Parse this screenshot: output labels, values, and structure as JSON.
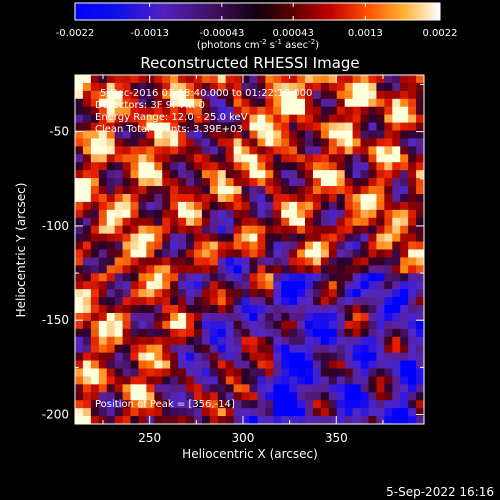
{
  "chart_data": {
    "type": "heatmap",
    "title": "Reconstructed RHESSI Image",
    "xlabel": "Heliocentric X (arcsec)",
    "ylabel": "Heliocentric Y (arcsec)",
    "xlim": [
      210,
      397
    ],
    "ylim": [
      -205,
      -20
    ],
    "x_ticks": [
      250,
      300,
      350
    ],
    "y_ticks": [
      -50,
      -100,
      -150,
      -200
    ],
    "colorbar": {
      "range": [
        -0.0022,
        0.0022
      ],
      "tick_labels": [
        "-0.0022",
        "-0.0013",
        "-0.00043",
        "0.00043",
        "0.0013",
        "0.0022"
      ],
      "label_prefix": "(photons cm",
      "label_sup1": "-2",
      "label_mid": " s",
      "label_sup2": "-1",
      "label_mid2": " asec",
      "label_sup3": "-2",
      "label_suffix": ")"
    },
    "annotations": [
      "5-Dec-2016 01:18:40.000 to 01:22:16.000",
      "Detectors: 3F 9F  Att 0",
      "Energy Range: 12.0 - 25.0 keV",
      "Clean     Total counts: 3.39E+03"
    ],
    "peak_label": "Position of Peak = [356,-14]",
    "grid": false
  },
  "footer": {
    "timestamp": "5-Sep-2022 16:16"
  },
  "colors": {
    "background": "#000000",
    "foreground": "#ffffff"
  }
}
